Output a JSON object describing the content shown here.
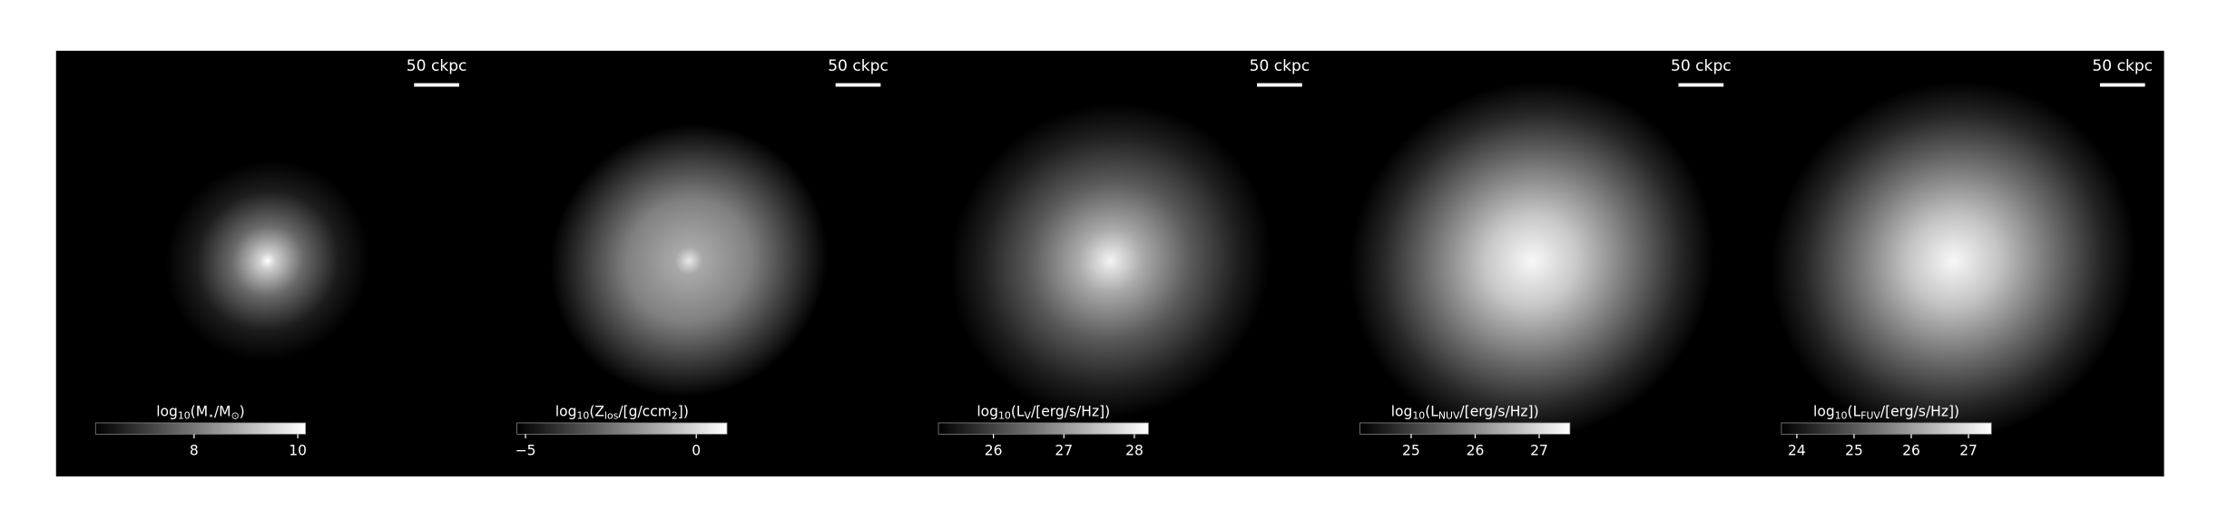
{
  "chart_data": [
    {
      "type": "image",
      "scale_bar": "50 ckpc",
      "colorbar_label": [
        "log",
        "10",
        "(M",
        "⋆",
        "/M",
        "⊙",
        ")"
      ],
      "clim": [
        6.1,
        10.15
      ],
      "cticks": [
        8,
        10
      ]
    },
    {
      "type": "image",
      "scale_bar": "50 ckpc",
      "colorbar_label": [
        "log",
        "10",
        "(Z",
        "los",
        "/[g/ccm",
        "2",
        "])"
      ],
      "clim": [
        -5.25,
        0.9
      ],
      "cticks": [
        {
          "value": -5,
          "label": "−5"
        },
        0
      ]
    },
    {
      "type": "image",
      "scale_bar": "50 ckpc",
      "colorbar_label": [
        "log",
        "10",
        "(L",
        "V",
        "/[erg/s/Hz])"
      ],
      "clim": [
        25.22,
        28.2
      ],
      "cticks": [
        26,
        27,
        28
      ]
    },
    {
      "type": "image",
      "scale_bar": "50 ckpc",
      "colorbar_label": [
        "log",
        "10",
        "(L",
        "NUV",
        "/[erg/s/Hz])"
      ],
      "clim": [
        24.2,
        27.48
      ],
      "cticks": [
        25,
        26,
        27
      ]
    },
    {
      "type": "image",
      "scale_bar": "50 ckpc",
      "colorbar_label": [
        "log",
        "10",
        "(L",
        "FUV",
        "/[erg/s/Hz])"
      ],
      "clim": [
        23.73,
        27.4
      ],
      "cticks": [
        24,
        25,
        26,
        27
      ]
    }
  ]
}
